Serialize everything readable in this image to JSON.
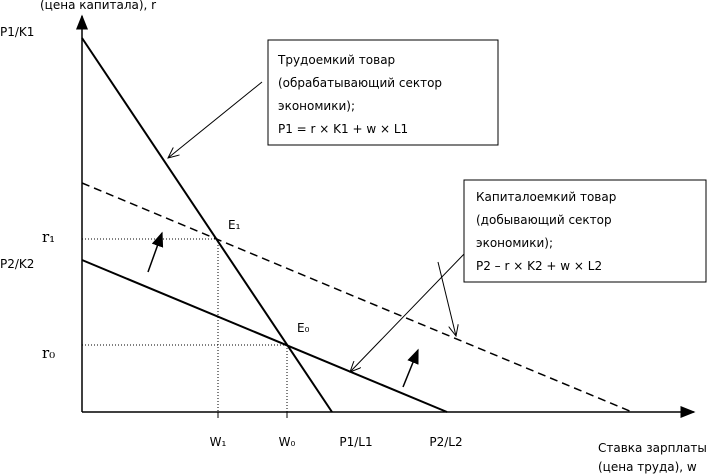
{
  "axes": {
    "y_title": "(цена капитала), r",
    "x_title": [
      "Ставка зарплаты",
      "(цена труда), w"
    ]
  },
  "y_labels": [
    "P1/K1",
    "r₁",
    "P2/K2",
    "r₀"
  ],
  "x_labels": [
    "W₁",
    "W₀",
    "P1/L1",
    "P2/L2"
  ],
  "points": [
    "E₁",
    "E₀"
  ],
  "boxes": [
    {
      "lines": [
        "Трудоемкий товар",
        "(обрабатывающий сектор",
        "экономики);",
        "P1 = r × K1 + w × L1"
      ]
    },
    {
      "lines": [
        "Капиталоемкий товар",
        "(добывающий сектор",
        "экономики);",
        "P2 – r × K2 + w × L2"
      ]
    }
  ]
}
